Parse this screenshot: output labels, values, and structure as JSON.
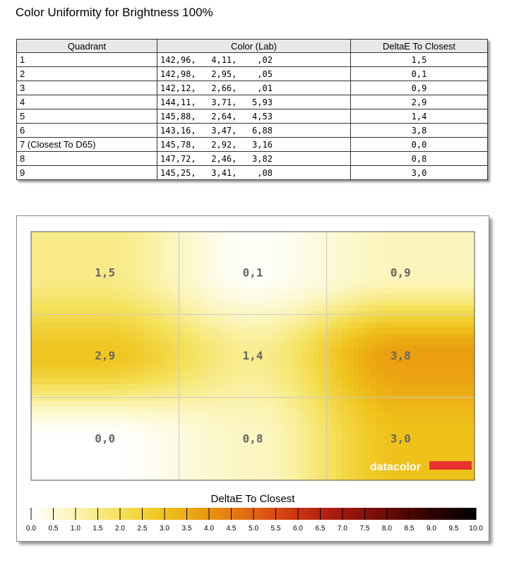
{
  "page": {
    "title": "Color Uniformity for Brightness 100%"
  },
  "table": {
    "headers": [
      "Quadrant",
      "Color (Lab)",
      "DeltaE To Closest"
    ],
    "rows": [
      {
        "quadrant": "1",
        "lab": "142,96,   4,11,    ,02",
        "deltae": "1,5"
      },
      {
        "quadrant": "2",
        "lab": "142,98,   2,95,    ,05",
        "deltae": "0,1"
      },
      {
        "quadrant": "3",
        "lab": "142,12,   2,66,    ,01",
        "deltae": "0,9"
      },
      {
        "quadrant": "4",
        "lab": "144,11,   3,71,   5,93",
        "deltae": "2,9"
      },
      {
        "quadrant": "5",
        "lab": "145,88,   2,64,   4,53",
        "deltae": "1,4"
      },
      {
        "quadrant": "6",
        "lab": "143,16,   3,47,   6,88",
        "deltae": "3,8"
      },
      {
        "quadrant": "7 (Closest To D65)",
        "lab": "145,78,   2,92,   3,16",
        "deltae": "0,0"
      },
      {
        "quadrant": "8",
        "lab": "147,72,   2,46,   3,82",
        "deltae": "0,8"
      },
      {
        "quadrant": "9",
        "lab": "145,25,   3,41,    ,08",
        "deltae": "3,0"
      }
    ]
  },
  "chart_data": {
    "type": "heatmap",
    "grid": [
      [
        1.5,
        0.1,
        0.9
      ],
      [
        2.9,
        1.4,
        3.8
      ],
      [
        0.0,
        0.8,
        3.0
      ]
    ],
    "cell_labels": [
      [
        "1,5",
        "0,1",
        "0,9"
      ],
      [
        "2,9",
        "1,4",
        "3,8"
      ],
      [
        "0,0",
        "0,8",
        "3,0"
      ]
    ],
    "colorbar_title": "DeltaE To Closest",
    "colorbar_ticks": [
      "0.0",
      "0.5",
      "1.0",
      "1.5",
      "2.0",
      "2.5",
      "3.0",
      "3.5",
      "4.0",
      "4.5",
      "5.0",
      "5.5",
      "6.0",
      "6.5",
      "7.0",
      "7.5",
      "8.0",
      "8.5",
      "9.0",
      "9.5",
      "10.0"
    ],
    "range": [
      0,
      10
    ],
    "watermark": "datacolor",
    "colors": {
      "scale": [
        "#ffffff",
        "#fbf4b4",
        "#f5e15a",
        "#efc21a",
        "#e9950e",
        "#e06312",
        "#cc3210",
        "#a0180c",
        "#6a0a06",
        "#300200",
        "#000000"
      ],
      "brand_bar": "#e8322d"
    }
  }
}
